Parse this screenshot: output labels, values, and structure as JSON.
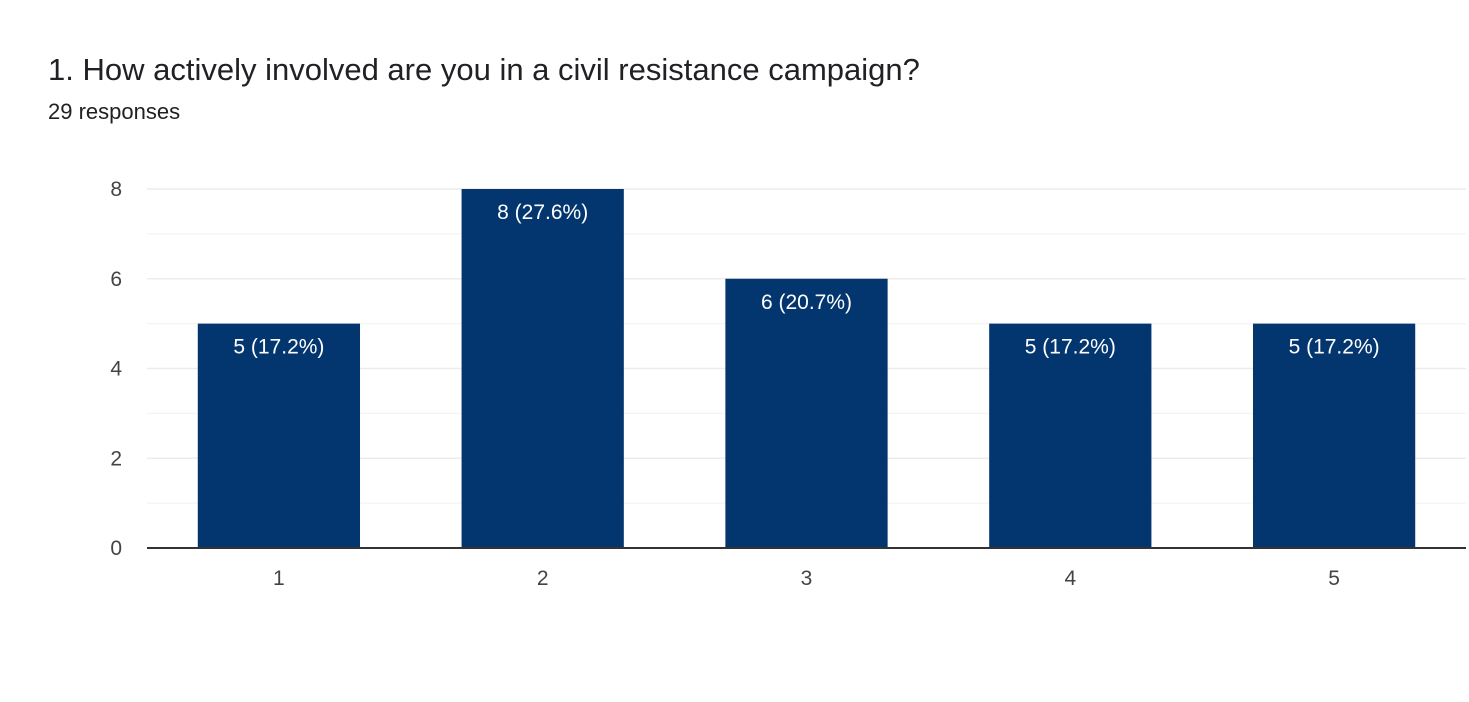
{
  "question": {
    "title": "1. How actively involved are you in a civil resistance campaign?",
    "responses": "29 responses"
  },
  "colors": {
    "bar": "#03366f",
    "gridline": "#ececec",
    "axis": "#333333",
    "bar_label": "#ffffff"
  },
  "chart_data": {
    "type": "bar",
    "categories": [
      "1",
      "2",
      "3",
      "4",
      "5"
    ],
    "values": [
      5,
      8,
      6,
      5,
      5
    ],
    "data_labels": [
      "5 (17.2%)",
      "8 (27.6%)",
      "6 (20.7%)",
      "5 (17.2%)",
      "5 (17.2%)"
    ],
    "yticks": [
      0,
      2,
      4,
      6,
      8
    ],
    "ylim": [
      0,
      8
    ],
    "grid": true,
    "minor_grid": true,
    "title": "1. How actively involved are you in a civil resistance campaign?",
    "subtitle": "29 responses",
    "xlabel": "",
    "ylabel": ""
  }
}
